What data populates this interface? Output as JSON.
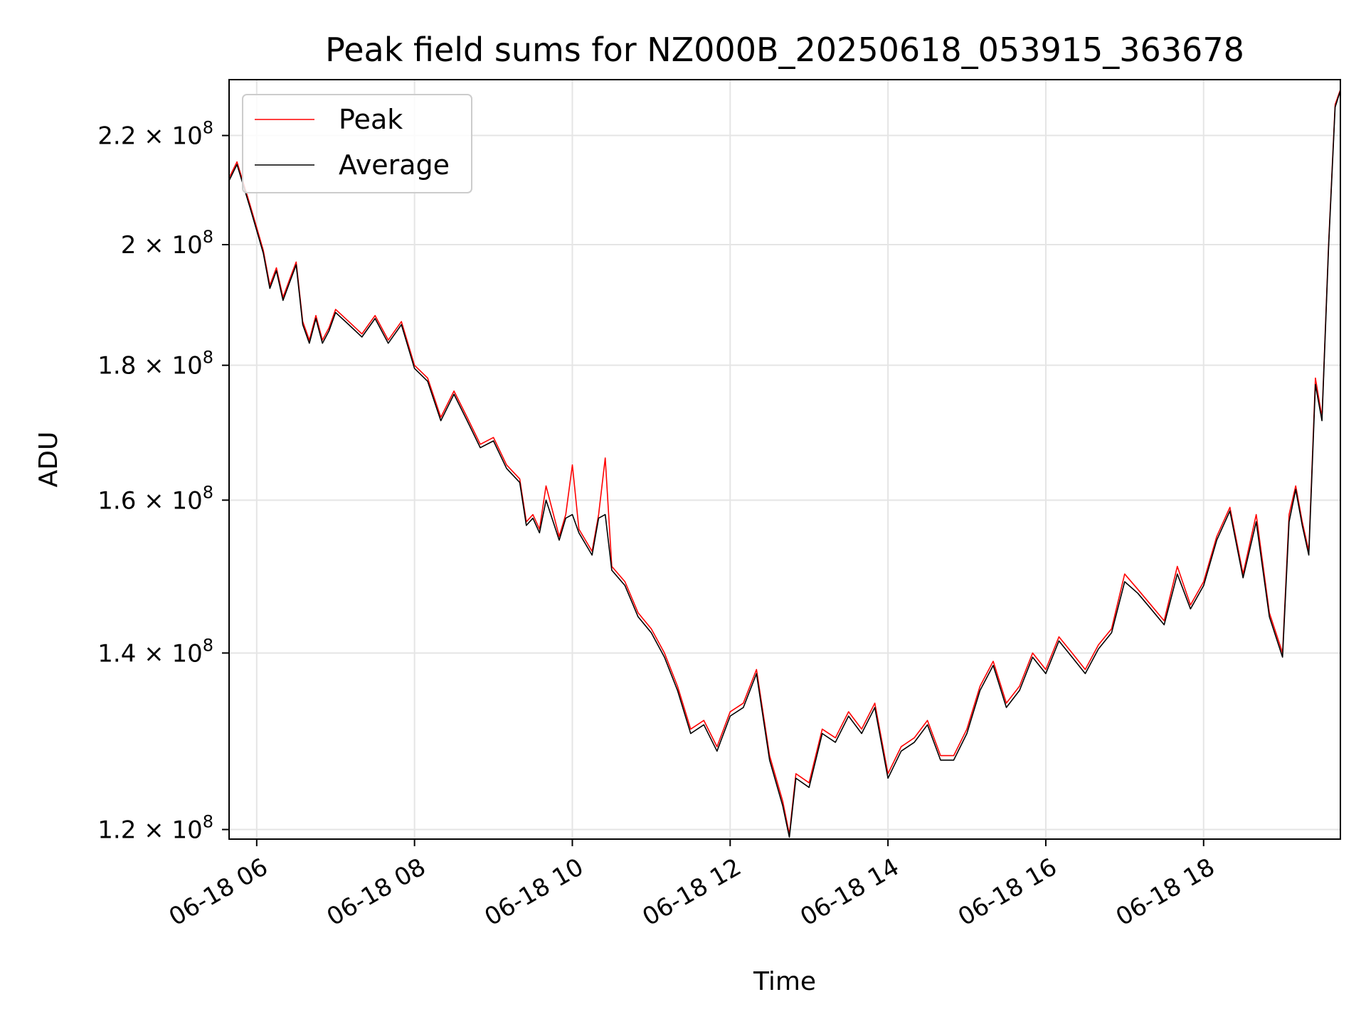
{
  "chart_data": {
    "type": "line",
    "title": "Peak field sums for NZ000B_20250618_053915_363678",
    "xlabel": "Time",
    "ylabel": "ADU",
    "yscale": "log",
    "ylim": [
      119000000,
      231000000
    ],
    "xlim": [
      "2025-06-18 05:39",
      "2025-06-18 19:44"
    ],
    "grid": true,
    "legend_position": "upper-left",
    "x_tick_labels": [
      "06-18 06",
      "06-18 08",
      "06-18 10",
      "06-18 12",
      "06-18 14",
      "06-18 16",
      "06-18 18"
    ],
    "x_tick_times": [
      "2025-06-18 06:00",
      "2025-06-18 08:00",
      "2025-06-18 10:00",
      "2025-06-18 12:00",
      "2025-06-18 14:00",
      "2025-06-18 16:00",
      "2025-06-18 18:00"
    ],
    "y_tick_values": [
      120000000,
      140000000,
      160000000,
      180000000,
      200000000,
      220000000
    ],
    "y_tick_labels": [
      {
        "mantissa": "1.2",
        "exponent": "8"
      },
      {
        "mantissa": "1.4",
        "exponent": "8"
      },
      {
        "mantissa": "1.6",
        "exponent": "8"
      },
      {
        "mantissa": "1.8",
        "exponent": "8"
      },
      {
        "mantissa": "2",
        "exponent": "8"
      },
      {
        "mantissa": "2.2",
        "exponent": "8"
      }
    ],
    "series": [
      {
        "name": "Peak",
        "color": "#ff0000",
        "x": [
          "2025-06-18 05:39",
          "2025-06-18 05:45",
          "2025-06-18 05:50",
          "2025-06-18 05:55",
          "2025-06-18 06:00",
          "2025-06-18 06:05",
          "2025-06-18 06:10",
          "2025-06-18 06:15",
          "2025-06-18 06:20",
          "2025-06-18 06:25",
          "2025-06-18 06:30",
          "2025-06-18 06:35",
          "2025-06-18 06:40",
          "2025-06-18 06:45",
          "2025-06-18 06:50",
          "2025-06-18 06:55",
          "2025-06-18 07:00",
          "2025-06-18 07:10",
          "2025-06-18 07:20",
          "2025-06-18 07:30",
          "2025-06-18 07:40",
          "2025-06-18 07:50",
          "2025-06-18 08:00",
          "2025-06-18 08:10",
          "2025-06-18 08:20",
          "2025-06-18 08:30",
          "2025-06-18 08:40",
          "2025-06-18 08:50",
          "2025-06-18 09:00",
          "2025-06-18 09:10",
          "2025-06-18 09:20",
          "2025-06-18 09:25",
          "2025-06-18 09:30",
          "2025-06-18 09:35",
          "2025-06-18 09:40",
          "2025-06-18 09:50",
          "2025-06-18 09:55",
          "2025-06-18 10:00",
          "2025-06-18 10:05",
          "2025-06-18 10:15",
          "2025-06-18 10:20",
          "2025-06-18 10:25",
          "2025-06-18 10:30",
          "2025-06-18 10:40",
          "2025-06-18 10:50",
          "2025-06-18 11:00",
          "2025-06-18 11:10",
          "2025-06-18 11:20",
          "2025-06-18 11:30",
          "2025-06-18 11:40",
          "2025-06-18 11:50",
          "2025-06-18 12:00",
          "2025-06-18 12:10",
          "2025-06-18 12:20",
          "2025-06-18 12:30",
          "2025-06-18 12:40",
          "2025-06-18 12:45",
          "2025-06-18 12:50",
          "2025-06-18 13:00",
          "2025-06-18 13:10",
          "2025-06-18 13:20",
          "2025-06-18 13:30",
          "2025-06-18 13:40",
          "2025-06-18 13:50",
          "2025-06-18 14:00",
          "2025-06-18 14:10",
          "2025-06-18 14:20",
          "2025-06-18 14:30",
          "2025-06-18 14:40",
          "2025-06-18 14:50",
          "2025-06-18 15:00",
          "2025-06-18 15:10",
          "2025-06-18 15:20",
          "2025-06-18 15:30",
          "2025-06-18 15:40",
          "2025-06-18 15:50",
          "2025-06-18 16:00",
          "2025-06-18 16:10",
          "2025-06-18 16:20",
          "2025-06-18 16:30",
          "2025-06-18 16:40",
          "2025-06-18 16:50",
          "2025-06-18 17:00",
          "2025-06-18 17:10",
          "2025-06-18 17:20",
          "2025-06-18 17:30",
          "2025-06-18 17:40",
          "2025-06-18 17:50",
          "2025-06-18 18:00",
          "2025-06-18 18:10",
          "2025-06-18 18:20",
          "2025-06-18 18:30",
          "2025-06-18 18:40",
          "2025-06-18 18:50",
          "2025-06-18 19:00",
          "2025-06-18 19:05",
          "2025-06-18 19:10",
          "2025-06-18 19:15",
          "2025-06-18 19:20",
          "2025-06-18 19:25",
          "2025-06-18 19:30",
          "2025-06-18 19:35",
          "2025-06-18 19:40",
          "2025-06-18 19:44"
        ],
        "values": [
          212000000,
          215000000,
          211000000,
          207000000,
          203000000,
          199000000,
          193000000,
          196000000,
          191000000,
          194000000,
          197000000,
          187000000,
          184000000,
          188000000,
          184000000,
          186000000,
          189000000,
          187000000,
          185000000,
          188000000,
          184000000,
          187000000,
          180000000,
          178000000,
          172000000,
          176000000,
          172000000,
          168000000,
          169000000,
          165000000,
          163000000,
          157000000,
          158000000,
          156000000,
          162000000,
          155000000,
          158000000,
          165000000,
          156000000,
          153000000,
          158000000,
          166000000,
          151000000,
          149000000,
          145000000,
          143000000,
          140000000,
          136000000,
          131000000,
          132000000,
          129000000,
          133000000,
          134000000,
          138000000,
          128000000,
          123000000,
          119500000,
          126000000,
          125000000,
          131000000,
          130000000,
          133000000,
          131000000,
          134000000,
          126000000,
          129000000,
          130000000,
          132000000,
          128000000,
          128000000,
          131000000,
          136000000,
          139000000,
          134000000,
          136000000,
          140000000,
          138000000,
          142000000,
          140000000,
          138000000,
          141000000,
          143000000,
          150000000,
          148000000,
          146000000,
          144000000,
          151000000,
          146000000,
          149000000,
          155000000,
          159000000,
          150000000,
          158000000,
          145000000,
          140000000,
          158000000,
          162000000,
          157000000,
          153000000,
          178000000,
          172000000,
          200000000,
          226000000,
          229000000
        ]
      },
      {
        "name": "Average",
        "color": "#000000",
        "x": [
          "2025-06-18 05:39",
          "2025-06-18 05:45",
          "2025-06-18 05:50",
          "2025-06-18 05:55",
          "2025-06-18 06:00",
          "2025-06-18 06:05",
          "2025-06-18 06:10",
          "2025-06-18 06:15",
          "2025-06-18 06:20",
          "2025-06-18 06:25",
          "2025-06-18 06:30",
          "2025-06-18 06:35",
          "2025-06-18 06:40",
          "2025-06-18 06:45",
          "2025-06-18 06:50",
          "2025-06-18 06:55",
          "2025-06-18 07:00",
          "2025-06-18 07:10",
          "2025-06-18 07:20",
          "2025-06-18 07:30",
          "2025-06-18 07:40",
          "2025-06-18 07:50",
          "2025-06-18 08:00",
          "2025-06-18 08:10",
          "2025-06-18 08:20",
          "2025-06-18 08:30",
          "2025-06-18 08:40",
          "2025-06-18 08:50",
          "2025-06-18 09:00",
          "2025-06-18 09:10",
          "2025-06-18 09:20",
          "2025-06-18 09:25",
          "2025-06-18 09:30",
          "2025-06-18 09:35",
          "2025-06-18 09:40",
          "2025-06-18 09:50",
          "2025-06-18 09:55",
          "2025-06-18 10:00",
          "2025-06-18 10:05",
          "2025-06-18 10:15",
          "2025-06-18 10:20",
          "2025-06-18 10:25",
          "2025-06-18 10:30",
          "2025-06-18 10:40",
          "2025-06-18 10:50",
          "2025-06-18 11:00",
          "2025-06-18 11:10",
          "2025-06-18 11:20",
          "2025-06-18 11:30",
          "2025-06-18 11:40",
          "2025-06-18 11:50",
          "2025-06-18 12:00",
          "2025-06-18 12:10",
          "2025-06-18 12:20",
          "2025-06-18 12:30",
          "2025-06-18 12:40",
          "2025-06-18 12:45",
          "2025-06-18 12:50",
          "2025-06-18 13:00",
          "2025-06-18 13:10",
          "2025-06-18 13:20",
          "2025-06-18 13:30",
          "2025-06-18 13:40",
          "2025-06-18 13:50",
          "2025-06-18 14:00",
          "2025-06-18 14:10",
          "2025-06-18 14:20",
          "2025-06-18 14:30",
          "2025-06-18 14:40",
          "2025-06-18 14:50",
          "2025-06-18 15:00",
          "2025-06-18 15:10",
          "2025-06-18 15:20",
          "2025-06-18 15:30",
          "2025-06-18 15:40",
          "2025-06-18 15:50",
          "2025-06-18 16:00",
          "2025-06-18 16:10",
          "2025-06-18 16:20",
          "2025-06-18 16:30",
          "2025-06-18 16:40",
          "2025-06-18 16:50",
          "2025-06-18 17:00",
          "2025-06-18 17:10",
          "2025-06-18 17:20",
          "2025-06-18 17:30",
          "2025-06-18 17:40",
          "2025-06-18 17:50",
          "2025-06-18 18:00",
          "2025-06-18 18:10",
          "2025-06-18 18:20",
          "2025-06-18 18:30",
          "2025-06-18 18:40",
          "2025-06-18 18:50",
          "2025-06-18 19:00",
          "2025-06-18 19:05",
          "2025-06-18 19:10",
          "2025-06-18 19:15",
          "2025-06-18 19:20",
          "2025-06-18 19:25",
          "2025-06-18 19:30",
          "2025-06-18 19:35",
          "2025-06-18 19:40",
          "2025-06-18 19:44"
        ],
        "values": [
          211500000,
          214500000,
          210500000,
          206500000,
          202500000,
          198500000,
          192500000,
          195500000,
          190500000,
          193500000,
          196500000,
          186500000,
          183500000,
          187500000,
          183500000,
          185500000,
          188500000,
          186500000,
          184500000,
          187500000,
          183500000,
          186500000,
          179500000,
          177500000,
          171500000,
          175500000,
          171500000,
          167500000,
          168500000,
          164500000,
          162500000,
          156500000,
          157500000,
          155500000,
          160000000,
          154500000,
          157500000,
          158000000,
          155500000,
          152500000,
          157500000,
          158000000,
          150500000,
          148500000,
          144500000,
          142500000,
          139500000,
          135500000,
          130500000,
          131500000,
          128500000,
          132500000,
          133500000,
          137500000,
          127500000,
          122500000,
          119200000,
          125500000,
          124500000,
          130500000,
          129500000,
          132500000,
          130500000,
          133500000,
          125500000,
          128500000,
          129500000,
          131500000,
          127500000,
          127500000,
          130500000,
          135500000,
          138500000,
          133500000,
          135500000,
          139500000,
          137500000,
          141500000,
          139500000,
          137500000,
          140500000,
          142500000,
          149000000,
          147500000,
          145500000,
          143500000,
          150000000,
          145500000,
          148500000,
          154500000,
          158500000,
          149500000,
          157000000,
          144500000,
          139500000,
          157000000,
          161500000,
          156500000,
          152500000,
          177000000,
          171500000,
          199500000,
          225500000,
          228800000
        ]
      }
    ]
  }
}
